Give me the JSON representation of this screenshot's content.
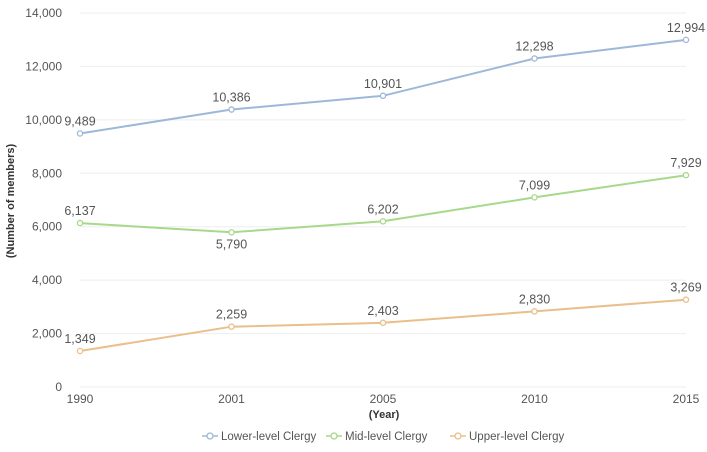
{
  "chart_data": {
    "type": "line",
    "title": "",
    "xlabel": "(Year)",
    "ylabel": "(Number of members)",
    "categories": [
      "1990",
      "2001",
      "2005",
      "2010",
      "2015"
    ],
    "ylim": [
      0,
      14000
    ],
    "yticks": [
      0,
      2000,
      4000,
      6000,
      8000,
      10000,
      12000,
      14000
    ],
    "ytick_labels": [
      "0",
      "2,000",
      "4,000",
      "6,000",
      "8,000",
      "10,000",
      "12,000",
      "14,000"
    ],
    "grid": true,
    "legend_position": "bottom",
    "series": [
      {
        "name": "Lower-level Clergy",
        "color": "#9db8d9",
        "values": [
          9489,
          10386,
          10901,
          12298,
          12994
        ],
        "labels": [
          "9,489",
          "10,386",
          "10,901",
          "12,298",
          "12,994"
        ],
        "label_pos": [
          "above",
          "above",
          "above",
          "above",
          "above"
        ]
      },
      {
        "name": "Mid-level Clergy",
        "color": "#a6d98a",
        "values": [
          6137,
          5790,
          6202,
          7099,
          7929
        ],
        "labels": [
          "6,137",
          "5,790",
          "6,202",
          "7,099",
          "7,929"
        ],
        "label_pos": [
          "above",
          "below",
          "above",
          "above",
          "above"
        ]
      },
      {
        "name": "Upper-level Clergy",
        "color": "#eabf8b",
        "values": [
          1349,
          2259,
          2403,
          2830,
          3269
        ],
        "labels": [
          "1,349",
          "2,259",
          "2,403",
          "2,830",
          "3,269"
        ],
        "label_pos": [
          "above",
          "above",
          "above",
          "above",
          "above"
        ]
      }
    ]
  }
}
